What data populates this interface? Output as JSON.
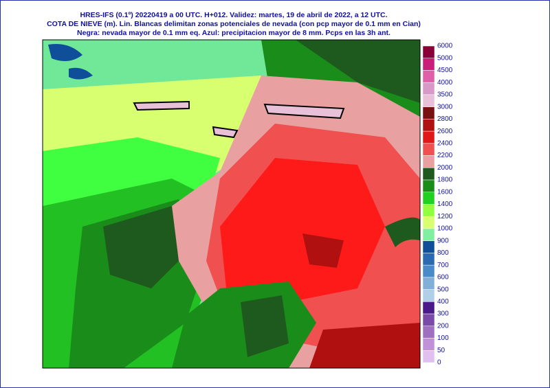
{
  "header": {
    "lines": [
      "HRES-IFS (0.1º) 20220419 a 00 UTC.  H+012. Validez: martes, 19 de abril de 2022,  a  12 UTC.",
      "COTA DE NIEVE (m). Lin. Blancas delimitan zonas potenciales de nevada (con pcp mayor de 0.1 mm en Cian)",
      "Negra: nevada mayor de 0.1 mm eq. Azul: precipitacion mayor de 8 mm. Pcps en las 3h ant."
    ]
  },
  "legend": {
    "labels": [
      6000,
      5000,
      4500,
      4000,
      3500,
      3000,
      2800,
      2600,
      2400,
      2200,
      2000,
      1800,
      1600,
      1400,
      1200,
      1000,
      900,
      800,
      700,
      600,
      500,
      400,
      300,
      200,
      100,
      50,
      0
    ],
    "colors": [
      "#8a0036",
      "#c8207a",
      "#e060a8",
      "#d898c8",
      "#e8c0d8",
      "#7a1010",
      "#b01010",
      "#e01818",
      "#f05050",
      "#e8a0a0",
      "#1e5a1e",
      "#1a8c1a",
      "#22d022",
      "#90ff40",
      "#d8ff70",
      "#80f0a0",
      "#0f4f9a",
      "#2a6ab0",
      "#4a8ac8",
      "#80b0d8",
      "#b0d0e8",
      "#4a1a8a",
      "#7a4aa8",
      "#a070c0",
      "#c090d8",
      "#e0c0f0"
    ]
  }
}
